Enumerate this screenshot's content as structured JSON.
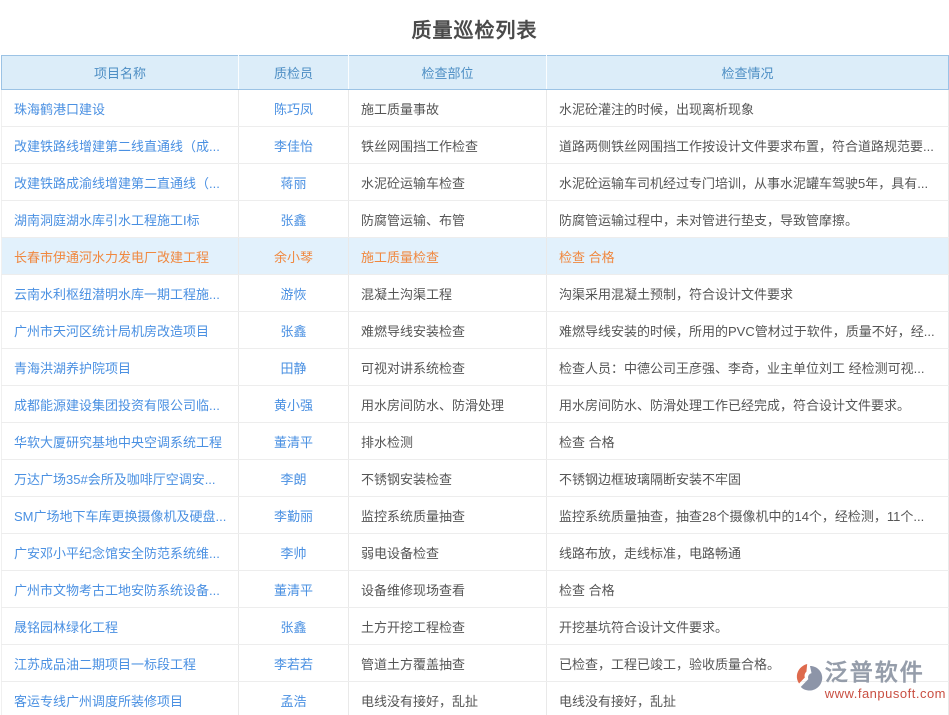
{
  "page": {
    "title": "质量巡检列表"
  },
  "table": {
    "columns": [
      "项目名称",
      "质检员",
      "检查部位",
      "检查情况"
    ],
    "rows": [
      {
        "project": "珠海鹤港口建设",
        "inspector": "陈巧凤",
        "part": "施工质量事故",
        "situation": "水泥砼灌注的时候，出现离析现象",
        "highlighted": false
      },
      {
        "project": "改建铁路线增建第二线直通线（成...",
        "inspector": "李佳怡",
        "part": "铁丝网围挡工作检查",
        "situation": "道路两侧铁丝网围挡工作按设计文件要求布置，符合道路规范要...",
        "highlighted": false
      },
      {
        "project": "改建铁路成渝线增建第二直通线（...",
        "inspector": "蒋丽",
        "part": "水泥砼运输车检查",
        "situation": "水泥砼运输车司机经过专门培训，从事水泥罐车驾驶5年，具有...",
        "highlighted": false
      },
      {
        "project": "湖南洞庭湖水库引水工程施工I标",
        "inspector": "张鑫",
        "part": "防腐管运输、布管",
        "situation": "防腐管运输过程中，未对管进行垫支，导致管摩擦。",
        "highlighted": false
      },
      {
        "project": "长春市伊通河水力发电厂改建工程",
        "inspector": "余小琴",
        "part": "施工质量检查",
        "situation": "检查 合格",
        "highlighted": true
      },
      {
        "project": "云南水利枢纽潜明水库一期工程施...",
        "inspector": "游恢",
        "part": "混凝土沟渠工程",
        "situation": "沟渠采用混凝土预制，符合设计文件要求",
        "highlighted": false
      },
      {
        "project": "广州市天河区统计局机房改造项目",
        "inspector": "张鑫",
        "part": "难燃导线安装检查",
        "situation": "难燃导线安装的时候，所用的PVC管材过于软件，质量不好，经...",
        "highlighted": false
      },
      {
        "project": "青海洪湖养护院项目",
        "inspector": "田静",
        "part": "可视对讲系统检查",
        "situation": "检查人员：中德公司王彦强、李奇，业主单位刘工 经检测可视...",
        "highlighted": false
      },
      {
        "project": "成都能源建设集团投资有限公司临...",
        "inspector": "黄小强",
        "part": "用水房间防水、防滑处理",
        "situation": "用水房间防水、防滑处理工作已经完成，符合设计文件要求。",
        "highlighted": false
      },
      {
        "project": "华软大厦研究基地中央空调系统工程",
        "inspector": "董清平",
        "part": "排水检测",
        "situation": "检查 合格",
        "highlighted": false
      },
      {
        "project": "万达广场35#会所及咖啡厅空调安...",
        "inspector": "李朗",
        "part": "不锈钢安装检查",
        "situation": "不锈钢边框玻璃隔断安装不牢固",
        "highlighted": false
      },
      {
        "project": "SM广场地下车库更换摄像机及硬盘...",
        "inspector": "李勤丽",
        "part": "监控系统质量抽查",
        "situation": "监控系统质量抽查，抽查28个摄像机中的14个，经检测，11个...",
        "highlighted": false
      },
      {
        "project": "广安邓小平纪念馆安全防范系统维...",
        "inspector": "李帅",
        "part": "弱电设备检查",
        "situation": "线路布放，走线标准，电路畅通",
        "highlighted": false
      },
      {
        "project": "广州市文物考古工地安防系统设备...",
        "inspector": "董清平",
        "part": "设备维修现场查看",
        "situation": "检查 合格",
        "highlighted": false
      },
      {
        "project": "晟铭园林绿化工程",
        "inspector": "张鑫",
        "part": "土方开挖工程检查",
        "situation": "开挖基坑符合设计文件要求。",
        "highlighted": false
      },
      {
        "project": "江苏成品油二期项目一标段工程",
        "inspector": "李若若",
        "part": "管道土方覆盖抽查",
        "situation": "已检查，工程已竣工，验收质量合格。",
        "highlighted": false
      },
      {
        "project": "客运专线广州调度所装修项目",
        "inspector": "孟浩",
        "part": "电线没有接好，乱扯",
        "situation": "电线没有接好，乱扯",
        "highlighted": false
      }
    ]
  },
  "watermark": {
    "logo_icon": "fanpu-logo-icon",
    "brand": "泛普软件",
    "url": "www.fanpusoft.com"
  },
  "colors": {
    "accent_blue": "#4a90e2",
    "header_bg": "#dcedf9",
    "header_text": "#4d8ec4",
    "header_border": "#9cc3e5",
    "highlight_bg": "#e2f1fc",
    "highlight_text": "#f0883f",
    "body_text": "#555555",
    "brand_gray": "#959daa",
    "brand_red": "#c94f42"
  }
}
